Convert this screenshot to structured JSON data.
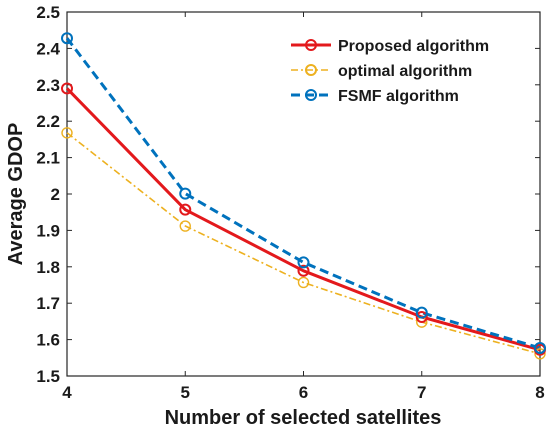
{
  "chart_data": {
    "type": "line",
    "xlabel": "Number of selected satellites",
    "ylabel": "Average GDOP",
    "x": [
      4,
      5,
      6,
      7,
      8
    ],
    "xlim": [
      4,
      8
    ],
    "ylim": [
      1.5,
      2.5
    ],
    "xticks": [
      "4",
      "5",
      "6",
      "7",
      "8"
    ],
    "yticks": [
      "1.5",
      "1.6",
      "1.7",
      "1.8",
      "1.9",
      "2",
      "2.1",
      "2.2",
      "2.3",
      "2.4",
      "2.5"
    ],
    "grid": false,
    "legend_position": "top-right",
    "series": [
      {
        "name": "Proposed algorithm",
        "values": [
          2.29,
          1.957,
          1.789,
          1.662,
          1.572
        ],
        "color": "#e3191c",
        "style": "solid",
        "marker": "circle"
      },
      {
        "name": "optimal algorithm",
        "values": [
          2.168,
          1.912,
          1.757,
          1.648,
          1.561
        ],
        "color": "#edb120",
        "style": "dashdot",
        "marker": "circle"
      },
      {
        "name": "FSMF algorithm",
        "values": [
          2.428,
          2.001,
          1.812,
          1.674,
          1.577
        ],
        "color": "#0072bd",
        "style": "dashed",
        "marker": "circle"
      }
    ]
  }
}
